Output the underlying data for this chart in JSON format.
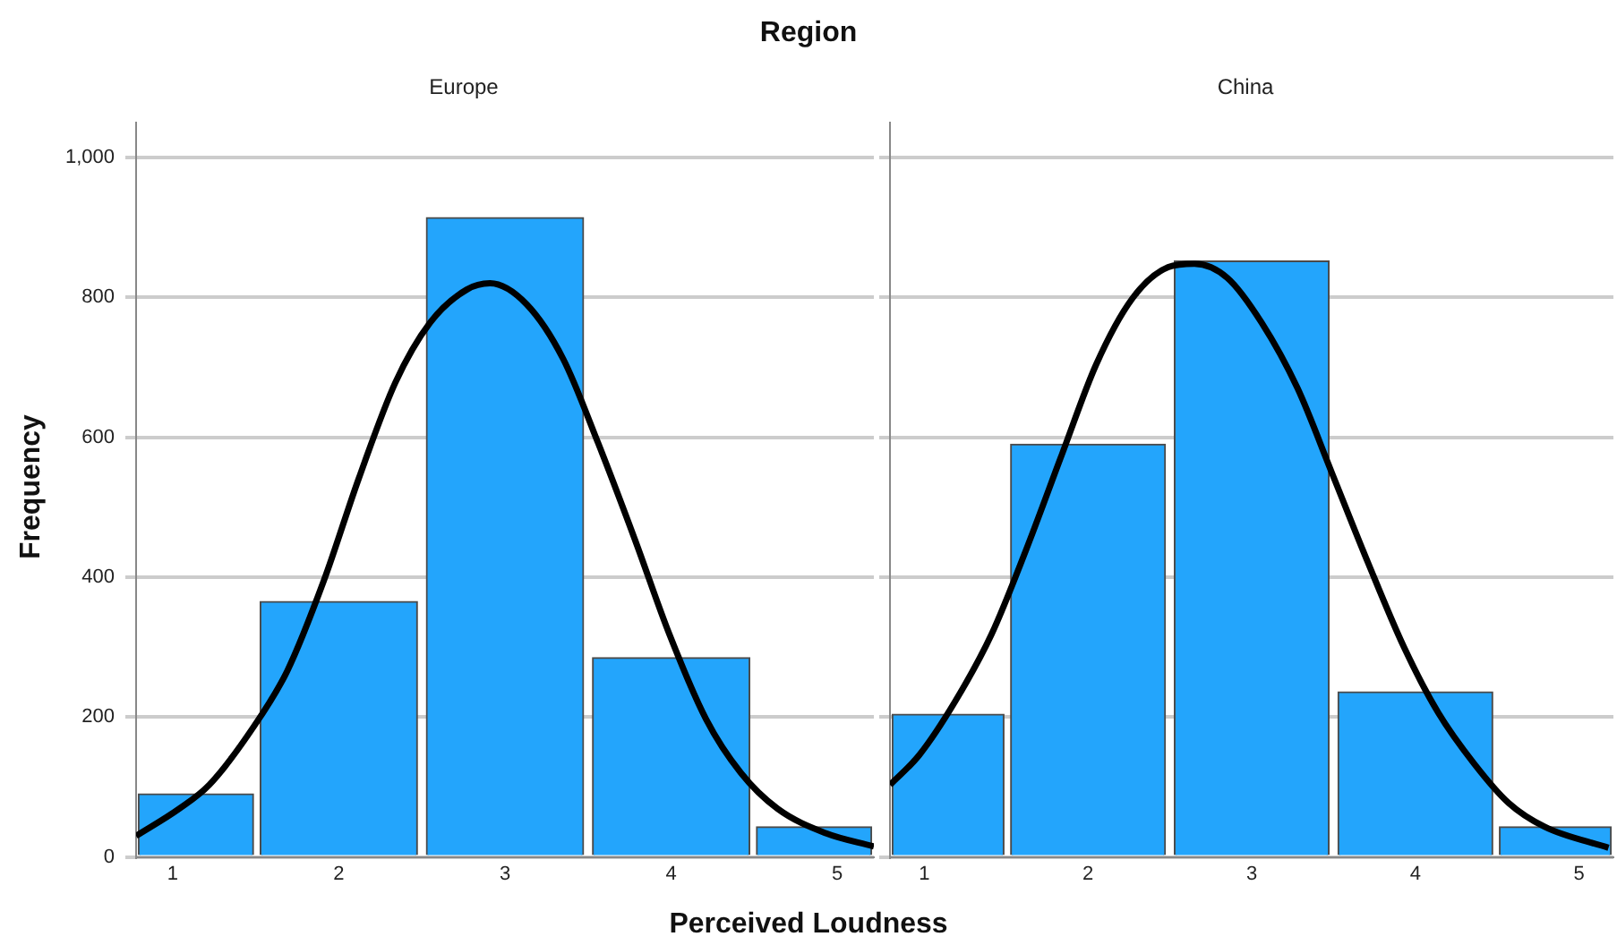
{
  "chart_data": [
    {
      "type": "histogram",
      "title": "Region",
      "subtitle": "Europe",
      "xlabel": "Perceived Loudness",
      "ylabel": "Frequency",
      "bins": [
        0.78,
        1.5,
        2.5,
        3.5,
        4.5,
        5.22
      ],
      "values": [
        90,
        365,
        914,
        285,
        43
      ],
      "color": "#23a5fc",
      "series": [
        {
          "type": "line",
          "color": "#000000",
          "marker": "none",
          "x": [
            0.78,
            1.04,
            1.22,
            1.47,
            1.69,
            1.91,
            2.12,
            2.34,
            2.55,
            2.77,
            2.91,
            3.13,
            3.35,
            3.56,
            3.78,
            3.99,
            4.21,
            4.42,
            4.64,
            4.93,
            5.22
          ],
          "values": [
            30,
            69,
            103,
            180,
            266,
            395,
            541,
            678,
            764,
            811,
            820,
            790,
            712,
            592,
            455,
            318,
            197,
            120,
            69,
            34,
            15
          ]
        }
      ],
      "xlim": [
        0.78,
        5.22
      ],
      "xticks": [
        1,
        2,
        3,
        4,
        5
      ],
      "ylim": [
        0,
        1050
      ],
      "yticks": [
        0,
        200,
        400,
        600,
        800,
        {
          "value": 1000,
          "label": "1,000"
        }
      ],
      "grid": "y",
      "legend": false
    },
    {
      "type": "histogram",
      "subtitle": "China",
      "bins": [
        0.79,
        1.5,
        2.5,
        3.5,
        4.5,
        5.21
      ],
      "values": [
        204,
        590,
        852,
        236,
        43
      ],
      "color": "#23a5fc",
      "series": [
        {
          "type": "line",
          "color": "#000000",
          "marker": "none",
          "x": [
            0.79,
            0.97,
            1.19,
            1.41,
            1.62,
            1.84,
            2.05,
            2.27,
            2.49,
            2.65,
            2.85,
            3.06,
            3.28,
            3.49,
            3.71,
            3.93,
            4.14,
            4.36,
            4.57,
            4.79,
            5.18
          ],
          "values": [
            103,
            146,
            223,
            318,
            438,
            575,
            704,
            798,
            843,
            848,
            828,
            764,
            670,
            549,
            421,
            300,
            206,
            133,
            77,
            43,
            13
          ]
        }
      ],
      "xlim": [
        0.79,
        5.21
      ],
      "xticks": [
        1,
        2,
        3,
        4,
        5
      ],
      "ylim": [
        0,
        1050
      ],
      "yticks": [
        0,
        200,
        400,
        600,
        800,
        1000
      ],
      "grid": "y",
      "legend": false,
      "tick_labels": "x"
    }
  ]
}
